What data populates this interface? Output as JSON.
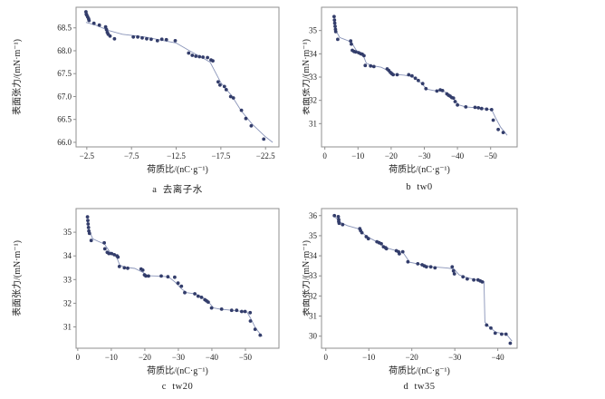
{
  "figure": {
    "background": "#ffffff",
    "point_color": "#333d6b",
    "line_color": "#8893b8",
    "axis_color": "#8f8f8f",
    "text_color": "#222222"
  },
  "chart_data": [
    {
      "type": "scatter",
      "caption": "a  去离子水",
      "xlabel": "荷质比/(nC·g⁻¹)",
      "ylabel": "表面张力/(mN·m⁻¹)",
      "xlim": [
        -1.3,
        -24.0
      ],
      "ylim": [
        65.9,
        68.95
      ],
      "xticks": [
        -2.5,
        -7.5,
        -12.5,
        -17.5,
        -22.5
      ],
      "xtick_labels": [
        "−2.5",
        "−7.5",
        "−12.5",
        "−17.5",
        "−22.5"
      ],
      "yticks": [
        66.0,
        66.5,
        67.0,
        67.5,
        68.0,
        68.5
      ],
      "ytick_labels": [
        "66.0",
        "66.5",
        "67.0",
        "67.5",
        "68.0",
        "68.5"
      ],
      "points": [
        [
          -2.4,
          68.85
        ],
        [
          -2.45,
          68.8
        ],
        [
          -2.5,
          68.78
        ],
        [
          -2.6,
          68.74
        ],
        [
          -2.7,
          68.7
        ],
        [
          -2.75,
          68.66
        ],
        [
          -3.3,
          68.6
        ],
        [
          -3.9,
          68.56
        ],
        [
          -4.6,
          68.52
        ],
        [
          -4.7,
          68.46
        ],
        [
          -4.8,
          68.4
        ],
        [
          -4.9,
          68.36
        ],
        [
          -5.1,
          68.32
        ],
        [
          -5.6,
          68.26
        ],
        [
          -7.7,
          68.3
        ],
        [
          -8.2,
          68.3
        ],
        [
          -8.7,
          68.28
        ],
        [
          -9.2,
          68.26
        ],
        [
          -9.7,
          68.25
        ],
        [
          -10.4,
          68.22
        ],
        [
          -10.9,
          68.25
        ],
        [
          -11.4,
          68.24
        ],
        [
          -12.4,
          68.22
        ],
        [
          -13.9,
          67.95
        ],
        [
          -14.3,
          67.9
        ],
        [
          -14.7,
          67.88
        ],
        [
          -15.1,
          67.87
        ],
        [
          -15.5,
          67.86
        ],
        [
          -16.0,
          67.85
        ],
        [
          -16.4,
          67.8
        ],
        [
          -16.6,
          67.78
        ],
        [
          -17.2,
          67.32
        ],
        [
          -17.4,
          67.25
        ],
        [
          -17.9,
          67.22
        ],
        [
          -18.1,
          67.15
        ],
        [
          -18.6,
          67.0
        ],
        [
          -18.9,
          66.97
        ],
        [
          -19.8,
          66.7
        ],
        [
          -20.3,
          66.52
        ],
        [
          -20.9,
          66.36
        ],
        [
          -22.3,
          66.07
        ]
      ],
      "trend_line": [
        [
          -2.4,
          68.62
        ],
        [
          -3.5,
          68.56
        ],
        [
          -5.0,
          68.44
        ],
        [
          -6.5,
          68.36
        ],
        [
          -9.0,
          68.3
        ],
        [
          -12.5,
          68.17
        ],
        [
          -14.0,
          68.0
        ],
        [
          -15.7,
          67.82
        ],
        [
          -16.3,
          67.75
        ],
        [
          -17.5,
          67.3
        ],
        [
          -18.7,
          67.02
        ],
        [
          -19.8,
          66.68
        ],
        [
          -21.0,
          66.4
        ],
        [
          -22.5,
          66.12
        ],
        [
          -23.3,
          66.0
        ]
      ]
    },
    {
      "type": "scatter",
      "caption": "b  tw0",
      "xlabel": "荷质比/(nC·g⁻¹)",
      "ylabel": "表面张力/(mN·m⁻¹)",
      "xlim": [
        1,
        -58
      ],
      "ylim": [
        30.0,
        36.0
      ],
      "xticks": [
        0,
        -10,
        -20,
        -30,
        -40,
        -50
      ],
      "xtick_labels": [
        "0",
        "−10",
        "−20",
        "−30",
        "−40",
        "−50"
      ],
      "yticks": [
        31,
        32,
        33,
        34,
        35
      ],
      "ytick_labels": [
        "31",
        "32",
        "33",
        "34",
        "35"
      ],
      "points": [
        [
          -2.8,
          35.6
        ],
        [
          -2.9,
          35.45
        ],
        [
          -3.0,
          35.32
        ],
        [
          -3.1,
          35.18
        ],
        [
          -3.2,
          35.05
        ],
        [
          -3.3,
          34.95
        ],
        [
          -3.9,
          34.62
        ],
        [
          -7.8,
          34.55
        ],
        [
          -8.0,
          34.42
        ],
        [
          -8.3,
          34.15
        ],
        [
          -8.8,
          34.1
        ],
        [
          -9.3,
          34.08
        ],
        [
          -10.2,
          34.05
        ],
        [
          -10.8,
          34.0
        ],
        [
          -11.3,
          33.98
        ],
        [
          -11.8,
          33.92
        ],
        [
          -12.2,
          33.5
        ],
        [
          -13.8,
          33.48
        ],
        [
          -14.8,
          33.45
        ],
        [
          -18.8,
          33.35
        ],
        [
          -19.3,
          33.28
        ],
        [
          -19.8,
          33.2
        ],
        [
          -20.2,
          33.15
        ],
        [
          -20.6,
          33.1
        ],
        [
          -21.8,
          33.1
        ],
        [
          -25.3,
          33.1
        ],
        [
          -26.3,
          33.05
        ],
        [
          -27.3,
          32.95
        ],
        [
          -28.2,
          32.85
        ],
        [
          -29.5,
          32.72
        ],
        [
          -30.5,
          32.5
        ],
        [
          -33.8,
          32.4
        ],
        [
          -34.8,
          32.45
        ],
        [
          -35.5,
          32.42
        ],
        [
          -36.8,
          32.28
        ],
        [
          -37.3,
          32.22
        ],
        [
          -37.8,
          32.18
        ],
        [
          -38.3,
          32.12
        ],
        [
          -38.8,
          32.1
        ],
        [
          -39.3,
          31.95
        ],
        [
          -40.0,
          31.8
        ],
        [
          -42.5,
          31.72
        ],
        [
          -45.3,
          31.7
        ],
        [
          -46.3,
          31.68
        ],
        [
          -47.3,
          31.65
        ],
        [
          -48.8,
          31.62
        ],
        [
          -50.3,
          31.6
        ],
        [
          -50.8,
          31.15
        ],
        [
          -52.3,
          30.75
        ],
        [
          -53.8,
          30.62
        ]
      ],
      "trend_line": [
        [
          -2.6,
          35.5
        ],
        [
          -3.5,
          34.95
        ],
        [
          -4.5,
          34.7
        ],
        [
          -6.0,
          34.62
        ],
        [
          -8.0,
          34.5
        ],
        [
          -9.5,
          34.15
        ],
        [
          -11.5,
          33.95
        ],
        [
          -12.5,
          33.6
        ],
        [
          -14.0,
          33.5
        ],
        [
          -17.0,
          33.42
        ],
        [
          -19.5,
          33.25
        ],
        [
          -21.0,
          33.12
        ],
        [
          -24.0,
          33.08
        ],
        [
          -26.5,
          33.02
        ],
        [
          -29.0,
          32.75
        ],
        [
          -30.8,
          32.48
        ],
        [
          -33.0,
          32.42
        ],
        [
          -35.5,
          32.42
        ],
        [
          -37.0,
          32.3
        ],
        [
          -39.0,
          32.05
        ],
        [
          -40.5,
          31.8
        ],
        [
          -42.5,
          31.72
        ],
        [
          -46.0,
          31.68
        ],
        [
          -50.3,
          31.6
        ],
        [
          -51.5,
          31.25
        ],
        [
          -53.0,
          30.85
        ],
        [
          -55.0,
          30.5
        ]
      ]
    },
    {
      "type": "scatter",
      "caption": "c  tw20",
      "xlabel": "荷质比/(nC·g⁻¹)",
      "ylabel": "表面张力/(mN·m⁻¹)",
      "xlim": [
        0.5,
        -60
      ],
      "ylim": [
        30.1,
        36.0
      ],
      "xticks": [
        0,
        -10,
        -20,
        -30,
        -40,
        -50
      ],
      "xtick_labels": [
        "0",
        "−10",
        "−20",
        "−30",
        "−40",
        "−50"
      ],
      "yticks": [
        31,
        32,
        33,
        34,
        35
      ],
      "ytick_labels": [
        "31",
        "32",
        "33",
        "34",
        "35"
      ],
      "points": [
        [
          -2.9,
          35.65
        ],
        [
          -3.0,
          35.5
        ],
        [
          -3.1,
          35.35
        ],
        [
          -3.2,
          35.2
        ],
        [
          -3.3,
          35.05
        ],
        [
          -3.5,
          34.95
        ],
        [
          -4.0,
          34.65
        ],
        [
          -7.9,
          34.55
        ],
        [
          -8.1,
          34.3
        ],
        [
          -8.8,
          34.15
        ],
        [
          -9.3,
          34.1
        ],
        [
          -10.1,
          34.1
        ],
        [
          -10.9,
          34.05
        ],
        [
          -11.7,
          34.0
        ],
        [
          -12.0,
          33.95
        ],
        [
          -12.4,
          33.55
        ],
        [
          -13.9,
          33.5
        ],
        [
          -14.9,
          33.48
        ],
        [
          -18.9,
          33.45
        ],
        [
          -19.4,
          33.4
        ],
        [
          -19.9,
          33.2
        ],
        [
          -20.3,
          33.15
        ],
        [
          -21.1,
          33.15
        ],
        [
          -24.9,
          33.15
        ],
        [
          -26.9,
          33.12
        ],
        [
          -28.9,
          33.1
        ],
        [
          -29.9,
          32.85
        ],
        [
          -30.9,
          32.72
        ],
        [
          -31.9,
          32.45
        ],
        [
          -34.9,
          32.4
        ],
        [
          -35.9,
          32.3
        ],
        [
          -36.9,
          32.25
        ],
        [
          -37.9,
          32.15
        ],
        [
          -38.4,
          32.1
        ],
        [
          -38.9,
          32.05
        ],
        [
          -39.9,
          31.8
        ],
        [
          -42.9,
          31.75
        ],
        [
          -45.9,
          31.7
        ],
        [
          -47.4,
          31.7
        ],
        [
          -48.9,
          31.65
        ],
        [
          -49.9,
          31.65
        ],
        [
          -51.4,
          31.6
        ],
        [
          -51.5,
          31.25
        ],
        [
          -52.9,
          30.9
        ],
        [
          -54.4,
          30.65
        ]
      ],
      "trend_line": [
        [
          -2.7,
          35.55
        ],
        [
          -3.6,
          35.0
        ],
        [
          -4.5,
          34.72
        ],
        [
          -6.0,
          34.62
        ],
        [
          -8.0,
          34.5
        ],
        [
          -9.5,
          34.18
        ],
        [
          -11.5,
          33.98
        ],
        [
          -12.5,
          33.62
        ],
        [
          -14.0,
          33.52
        ],
        [
          -17.0,
          33.47
        ],
        [
          -19.5,
          33.3
        ],
        [
          -21.0,
          33.16
        ],
        [
          -24.0,
          33.15
        ],
        [
          -27.0,
          33.12
        ],
        [
          -29.0,
          32.9
        ],
        [
          -31.0,
          32.6
        ],
        [
          -32.5,
          32.45
        ],
        [
          -35.0,
          32.4
        ],
        [
          -37.0,
          32.28
        ],
        [
          -39.0,
          32.05
        ],
        [
          -40.5,
          31.8
        ],
        [
          -42.5,
          31.75
        ],
        [
          -46.0,
          31.7
        ],
        [
          -50.5,
          31.63
        ],
        [
          -51.8,
          31.3
        ],
        [
          -53.0,
          30.95
        ],
        [
          -55.0,
          30.6
        ]
      ]
    },
    {
      "type": "scatter",
      "caption": "d  tw35",
      "xlabel": "荷质比/(nC·g⁻¹)",
      "ylabel": "表面张力/(mN·m⁻¹)",
      "xlim": [
        1,
        -44.5
      ],
      "ylim": [
        29.4,
        36.35
      ],
      "xticks": [
        0,
        -10,
        -20,
        -30,
        -40
      ],
      "xtick_labels": [
        "0",
        "−10",
        "−20",
        "−30",
        "−40"
      ],
      "yticks": [
        30,
        31,
        32,
        33,
        34,
        35,
        36
      ],
      "ytick_labels": [
        "30",
        "31",
        "32",
        "33",
        "34",
        "35",
        "36"
      ],
      "points": [
        [
          -2.0,
          36.0
        ],
        [
          -2.9,
          35.95
        ],
        [
          -3.0,
          35.8
        ],
        [
          -3.0,
          35.7
        ],
        [
          -3.1,
          35.62
        ],
        [
          -3.9,
          35.55
        ],
        [
          -7.9,
          35.35
        ],
        [
          -8.1,
          35.25
        ],
        [
          -8.4,
          35.15
        ],
        [
          -9.4,
          34.95
        ],
        [
          -9.9,
          34.85
        ],
        [
          -11.9,
          34.7
        ],
        [
          -12.4,
          34.65
        ],
        [
          -12.9,
          34.6
        ],
        [
          -13.4,
          34.45
        ],
        [
          -13.9,
          34.4
        ],
        [
          -14.1,
          34.35
        ],
        [
          -16.4,
          34.25
        ],
        [
          -16.9,
          34.2
        ],
        [
          -17.1,
          34.1
        ],
        [
          -17.9,
          34.2
        ],
        [
          -19.1,
          33.7
        ],
        [
          -21.4,
          33.6
        ],
        [
          -22.4,
          33.55
        ],
        [
          -22.9,
          33.5
        ],
        [
          -23.4,
          33.45
        ],
        [
          -24.4,
          33.45
        ],
        [
          -25.4,
          33.4
        ],
        [
          -29.4,
          33.45
        ],
        [
          -29.7,
          33.25
        ],
        [
          -29.9,
          33.1
        ],
        [
          -31.9,
          32.95
        ],
        [
          -32.9,
          32.85
        ],
        [
          -34.4,
          32.8
        ],
        [
          -35.4,
          32.8
        ],
        [
          -35.9,
          32.75
        ],
        [
          -36.4,
          32.7
        ],
        [
          -37.4,
          30.55
        ],
        [
          -38.4,
          30.4
        ],
        [
          -39.4,
          30.15
        ],
        [
          -40.9,
          30.1
        ],
        [
          -41.9,
          30.1
        ],
        [
          -42.9,
          29.65
        ]
      ],
      "trend_line": [
        [
          -1.8,
          36.0
        ],
        [
          -3.5,
          35.65
        ],
        [
          -5.0,
          35.5
        ],
        [
          -7.5,
          35.35
        ],
        [
          -9.0,
          35.05
        ],
        [
          -10.5,
          34.85
        ],
        [
          -12.5,
          34.62
        ],
        [
          -14.0,
          34.4
        ],
        [
          -16.0,
          34.28
        ],
        [
          -18.0,
          34.15
        ],
        [
          -18.8,
          33.9
        ],
        [
          -19.5,
          33.68
        ],
        [
          -22.0,
          33.57
        ],
        [
          -25.0,
          33.45
        ],
        [
          -28.0,
          33.4
        ],
        [
          -29.8,
          33.35
        ],
        [
          -31.0,
          33.05
        ],
        [
          -33.0,
          32.9
        ],
        [
          -36.3,
          32.75
        ],
        [
          -36.8,
          32.72
        ],
        [
          -37.0,
          30.7
        ],
        [
          -37.8,
          30.5
        ],
        [
          -39.5,
          30.2
        ],
        [
          -42.0,
          30.1
        ],
        [
          -43.3,
          29.75
        ]
      ]
    }
  ]
}
